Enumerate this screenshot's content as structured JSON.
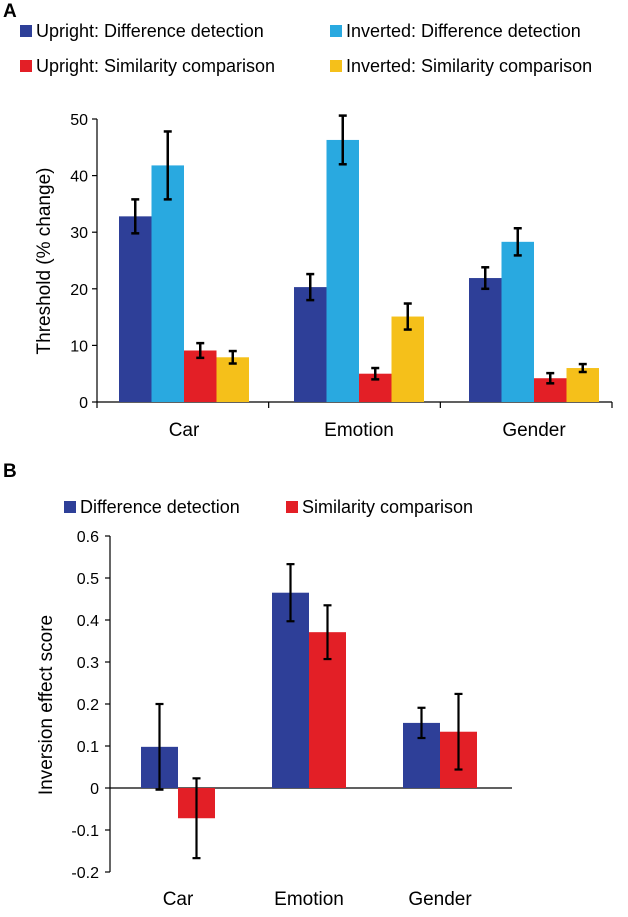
{
  "chart_data": [
    {
      "panel": "A",
      "type": "bar",
      "ylabel": "Threshold (% change)",
      "categories": [
        "Car",
        "Emotion",
        "Gender"
      ],
      "ylim": [
        0,
        50
      ],
      "yticks": [
        0,
        10,
        20,
        30,
        40,
        50
      ],
      "legend_position": "top",
      "series": [
        {
          "name": "Upright: Difference detection",
          "color": "#2e3f98",
          "values": [
            32.8,
            20.3,
            21.9
          ],
          "errors": [
            3.0,
            2.3,
            1.9
          ]
        },
        {
          "name": "Inverted: Difference detection",
          "color": "#29a9e0",
          "values": [
            41.8,
            46.3,
            28.3
          ],
          "errors": [
            6.0,
            4.3,
            2.4
          ]
        },
        {
          "name": "Upright: Similarity comparison",
          "color": "#e31f26",
          "values": [
            9.1,
            5.0,
            4.2
          ],
          "errors": [
            1.3,
            1.0,
            0.9
          ]
        },
        {
          "name": "Inverted: Similarity comparison",
          "color": "#f5c01a",
          "values": [
            7.9,
            15.1,
            6.0
          ],
          "errors": [
            1.1,
            2.3,
            0.7
          ]
        }
      ]
    },
    {
      "panel": "B",
      "type": "bar",
      "ylabel": "Inversion effect score",
      "categories": [
        "Car",
        "Emotion",
        "Gender"
      ],
      "ylim": [
        -0.2,
        0.6
      ],
      "yticks": [
        "-0.2",
        "-0.1",
        "0",
        "0.1",
        "0.2",
        "0.3",
        "0.4",
        "0.5",
        "0.6"
      ],
      "legend_position": "top",
      "series": [
        {
          "name": "Difference detection",
          "color": "#2e3f98",
          "values": [
            0.098,
            0.465,
            0.155
          ],
          "errors": [
            0.102,
            0.068,
            0.036
          ]
        },
        {
          "name": "Similarity comparison",
          "color": "#e31f26",
          "values": [
            -0.072,
            0.371,
            0.134
          ],
          "errors": [
            0.095,
            0.064,
            0.09
          ]
        }
      ]
    }
  ]
}
